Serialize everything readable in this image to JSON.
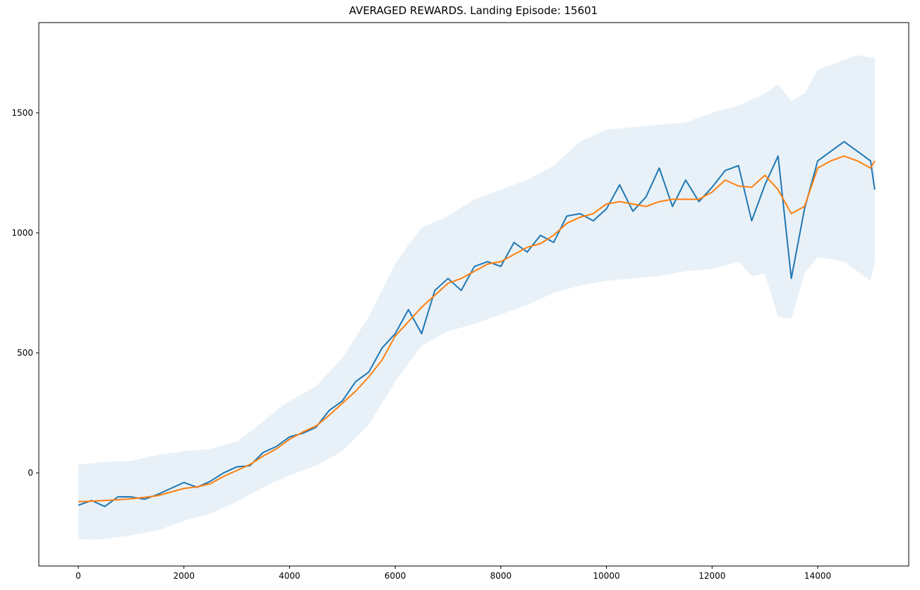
{
  "chart_data": {
    "type": "line",
    "title": "AVERAGED REWARDS. Landing Episode: 15601",
    "x": [
      0,
      250,
      500,
      750,
      1000,
      1250,
      1500,
      1750,
      2000,
      2250,
      2500,
      2750,
      3000,
      3250,
      3500,
      3750,
      4000,
      4250,
      4500,
      4750,
      5000,
      5250,
      5500,
      5750,
      6000,
      6250,
      6500,
      6750,
      7000,
      7250,
      7500,
      7750,
      8000,
      8250,
      8500,
      8750,
      9000,
      9250,
      9500,
      9750,
      10000,
      10250,
      10500,
      10750,
      11000,
      11250,
      11500,
      11750,
      12000,
      12250,
      12500,
      12750,
      13000,
      13250,
      13500,
      13750,
      14000,
      14250,
      14500,
      14750,
      15000,
      15080
    ],
    "band": {
      "color": "#1f77b4",
      "opacity": 0.1,
      "upper": [
        35,
        40,
        45,
        48,
        50,
        62,
        75,
        82,
        90,
        95,
        100,
        115,
        130,
        170,
        215,
        260,
        300,
        330,
        360,
        420,
        480,
        565,
        650,
        760,
        870,
        950,
        1020,
        1045,
        1070,
        1105,
        1140,
        1160,
        1180,
        1200,
        1220,
        1250,
        1280,
        1330,
        1380,
        1405,
        1430,
        1435,
        1440,
        1445,
        1450,
        1455,
        1460,
        1480,
        1500,
        1515,
        1530,
        1555,
        1580,
        1620,
        1550,
        1580,
        1680,
        1700,
        1720,
        1740,
        1730,
        1730
      ],
      "lower": [
        -275,
        -278,
        -275,
        -268,
        -260,
        -250,
        -240,
        -220,
        -200,
        -185,
        -170,
        -145,
        -120,
        -90,
        -60,
        -35,
        -10,
        10,
        30,
        60,
        90,
        145,
        200,
        290,
        380,
        455,
        530,
        560,
        590,
        605,
        620,
        640,
        660,
        680,
        700,
        725,
        750,
        765,
        780,
        790,
        800,
        805,
        810,
        815,
        820,
        830,
        840,
        845,
        850,
        865,
        880,
        820,
        830,
        650,
        640,
        830,
        900,
        890,
        880,
        840,
        800,
        880
      ]
    },
    "series": [
      {
        "color": "#1f77b4",
        "values": [
          -135,
          -115,
          -140,
          -100,
          -100,
          -110,
          -90,
          -65,
          -40,
          -60,
          -35,
          0,
          25,
          30,
          85,
          110,
          150,
          165,
          190,
          260,
          300,
          380,
          420,
          520,
          580,
          680,
          580,
          760,
          810,
          760,
          860,
          880,
          860,
          960,
          920,
          990,
          960,
          1070,
          1080,
          1050,
          1100,
          1200,
          1090,
          1150,
          1270,
          1110,
          1220,
          1130,
          1190,
          1260,
          1280,
          1050,
          1200,
          1320,
          810,
          1100,
          1300,
          1340,
          1380,
          1340,
          1300,
          1180
        ]
      },
      {
        "color": "#ff7f0e",
        "values": [
          -120,
          -118,
          -115,
          -112,
          -108,
          -102,
          -95,
          -80,
          -65,
          -58,
          -45,
          -15,
          10,
          35,
          70,
          100,
          140,
          170,
          195,
          240,
          290,
          340,
          400,
          470,
          570,
          630,
          690,
          740,
          790,
          810,
          840,
          870,
          880,
          910,
          940,
          955,
          990,
          1040,
          1065,
          1080,
          1120,
          1130,
          1120,
          1110,
          1130,
          1140,
          1140,
          1140,
          1170,
          1220,
          1195,
          1190,
          1240,
          1180,
          1080,
          1110,
          1270,
          1300,
          1320,
          1300,
          1270,
          1300
        ]
      }
    ],
    "xlim": [
      -748,
      15723
    ],
    "ylim": [
      -388,
      1876
    ],
    "xticks": [
      0,
      2000,
      4000,
      6000,
      8000,
      10000,
      12000,
      14000
    ],
    "yticks": [
      0,
      500,
      1000,
      1500
    ]
  }
}
